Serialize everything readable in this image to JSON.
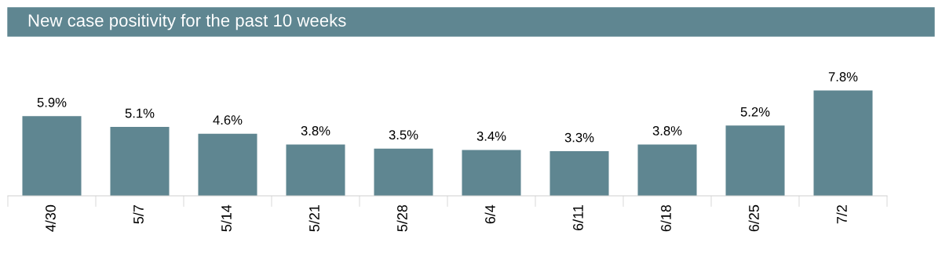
{
  "chart_data": {
    "type": "bar",
    "title": "New case positivity for the past 10 weeks",
    "categories": [
      "4/30",
      "5/7",
      "5/14",
      "5/21",
      "5/28",
      "6/4",
      "6/11",
      "6/18",
      "6/25",
      "7/2"
    ],
    "values": [
      5.9,
      5.1,
      4.6,
      3.8,
      3.5,
      3.4,
      3.3,
      3.8,
      5.2,
      7.8
    ],
    "value_labels": [
      "5.9%",
      "5.1%",
      "4.6%",
      "3.8%",
      "3.5%",
      "3.4%",
      "3.3%",
      "3.8%",
      "5.2%",
      "7.8%"
    ],
    "color": "#5f8691"
  }
}
